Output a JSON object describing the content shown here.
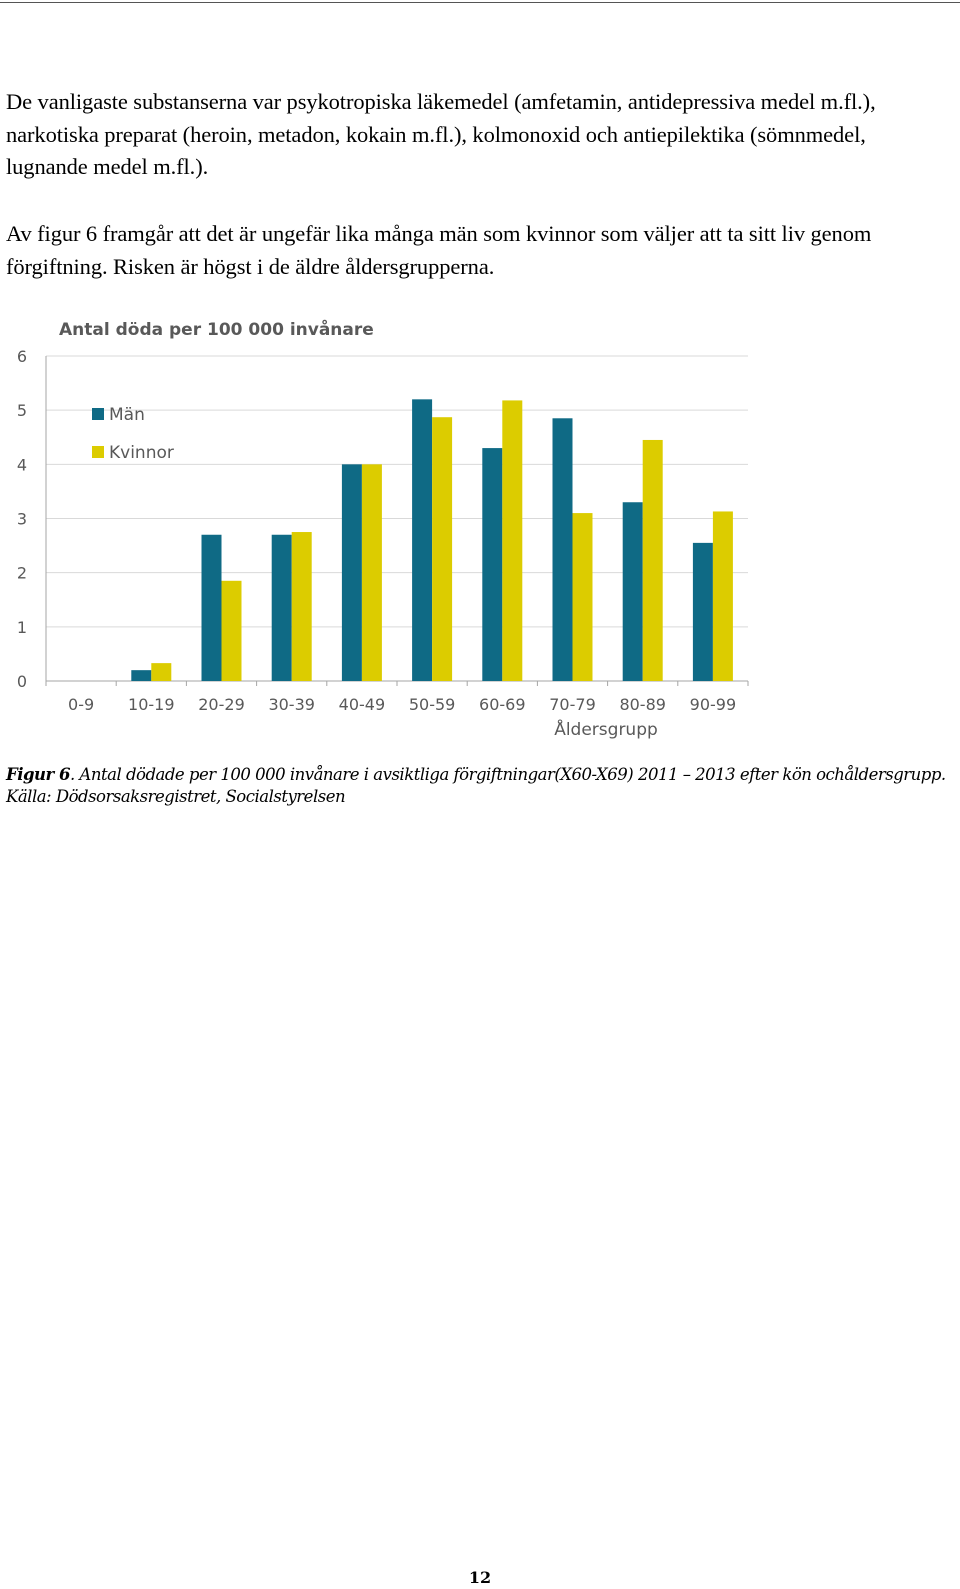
{
  "paragraphs": [
    "De vanligaste substanserna var psykotropiska läkemedel (amfetamin, antidepressiva medel m.fl.), narkotiska preparat (heroin, metadon, kokain m.fl.), kolmonoxid och antiepilektika (sömnmedel, lugnande medel m.fl.).",
    "Av figur 6 framgår att det är ungefär lika många män som kvinnor som väljer att ta sitt liv genom förgiftning. Risken är högst i de äldre åldersgrupperna."
  ],
  "caption": {
    "label": "Figur 6",
    "text": ". Antal dödade per 100 000 invånare i avsiktliga förgiftningar(X60-X69)  2011 – 2013 efter kön ochåldersgrupp. Källa: Dödsorsaksregistret, Socialstyrelsen"
  },
  "page_number": "12",
  "chart_data": {
    "type": "bar",
    "title": "Antal döda per 100 000 invånare",
    "xlabel": "Åldersgrupp",
    "ylabel": "",
    "categories": [
      "0-9",
      "10-19",
      "20-29",
      "30-39",
      "40-49",
      "50-59",
      "60-69",
      "70-79",
      "80-89",
      "90-99"
    ],
    "series": [
      {
        "name": "Män",
        "color": "#0f6a85",
        "values": [
          0,
          0.2,
          2.7,
          2.7,
          4.0,
          5.2,
          4.3,
          4.85,
          3.3,
          2.55
        ]
      },
      {
        "name": "Kvinnor",
        "color": "#dccc00",
        "values": [
          0,
          0.33,
          1.85,
          2.75,
          4.0,
          4.87,
          5.18,
          3.1,
          4.45,
          3.13
        ]
      }
    ],
    "ylim": [
      0,
      6
    ],
    "yticks": [
      0,
      1,
      2,
      3,
      4,
      5,
      6
    ],
    "grid": true,
    "legend_position": "top-left",
    "gridline_color": "#d9d9d9",
    "axis_color": "#a6a6a6",
    "text_color": "#595959"
  }
}
